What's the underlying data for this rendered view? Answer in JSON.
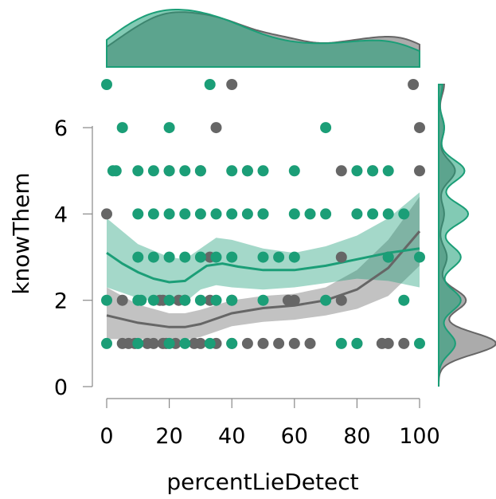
{
  "chart_data": {
    "type": "scatter",
    "title": "",
    "xlabel": "percentLieDetect",
    "ylabel": "knowThem",
    "xlim": [
      0,
      100
    ],
    "ylim": [
      0,
      7
    ],
    "x_ticks": [
      "0",
      "20",
      "40",
      "60",
      "80",
      "100"
    ],
    "y_ticks": [
      "0",
      "2",
      "4",
      "6"
    ],
    "grid": false,
    "legend": "none",
    "marginal_density": {
      "x": "top",
      "y": "right"
    },
    "colors": {
      "green": "#1b9e77",
      "gray": "#666666"
    },
    "series": [
      {
        "color": "#1b9e77",
        "points": [
          [
            0,
            7
          ],
          [
            33,
            7
          ],
          [
            5,
            6
          ],
          [
            20,
            6
          ],
          [
            70,
            6
          ],
          [
            2,
            5
          ],
          [
            3,
            5
          ],
          [
            10,
            5
          ],
          [
            15,
            5
          ],
          [
            20,
            5
          ],
          [
            25,
            5
          ],
          [
            30,
            5
          ],
          [
            40,
            5
          ],
          [
            45,
            5
          ],
          [
            50,
            5
          ],
          [
            60,
            5
          ],
          [
            80,
            5
          ],
          [
            85,
            5
          ],
          [
            90,
            5
          ],
          [
            10,
            4
          ],
          [
            15,
            4
          ],
          [
            20,
            4
          ],
          [
            25,
            4
          ],
          [
            30,
            4
          ],
          [
            35,
            4
          ],
          [
            40,
            4
          ],
          [
            45,
            4
          ],
          [
            50,
            4
          ],
          [
            60,
            4
          ],
          [
            65,
            4
          ],
          [
            70,
            4
          ],
          [
            80,
            4
          ],
          [
            85,
            4
          ],
          [
            90,
            4
          ],
          [
            95,
            4
          ],
          [
            10,
            3
          ],
          [
            15,
            3
          ],
          [
            20,
            3
          ],
          [
            25,
            3
          ],
          [
            30,
            3
          ],
          [
            35,
            3
          ],
          [
            40,
            3
          ],
          [
            50,
            3
          ],
          [
            55,
            3
          ],
          [
            60,
            3
          ],
          [
            90,
            3
          ],
          [
            100,
            3
          ],
          [
            0,
            2
          ],
          [
            10,
            2
          ],
          [
            11,
            2
          ],
          [
            15,
            2
          ],
          [
            20,
            2
          ],
          [
            25,
            2
          ],
          [
            30,
            2
          ],
          [
            35,
            2
          ],
          [
            40,
            2
          ],
          [
            50,
            2
          ],
          [
            70,
            2
          ],
          [
            95,
            2
          ],
          [
            0,
            1
          ],
          [
            10,
            1
          ],
          [
            20,
            1
          ],
          [
            25,
            1
          ],
          [
            33,
            1
          ],
          [
            40,
            1
          ],
          [
            75,
            1
          ],
          [
            80,
            1
          ],
          [
            100,
            1
          ]
        ],
        "smooth_line": [
          [
            0,
            3.1
          ],
          [
            5,
            2.85
          ],
          [
            10,
            2.65
          ],
          [
            15,
            2.5
          ],
          [
            20,
            2.42
          ],
          [
            25,
            2.45
          ],
          [
            28,
            2.6
          ],
          [
            32,
            2.8
          ],
          [
            37,
            2.85
          ],
          [
            42,
            2.78
          ],
          [
            50,
            2.7
          ],
          [
            60,
            2.7
          ],
          [
            70,
            2.8
          ],
          [
            80,
            2.95
          ],
          [
            90,
            3.1
          ],
          [
            100,
            3.2
          ]
        ],
        "band_upper": [
          [
            0,
            3.9
          ],
          [
            10,
            3.3
          ],
          [
            20,
            3.0
          ],
          [
            25,
            2.95
          ],
          [
            30,
            3.2
          ],
          [
            35,
            3.45
          ],
          [
            40,
            3.4
          ],
          [
            50,
            3.2
          ],
          [
            60,
            3.1
          ],
          [
            70,
            3.25
          ],
          [
            80,
            3.5
          ],
          [
            90,
            3.9
          ],
          [
            100,
            4.5
          ]
        ],
        "band_lower": [
          [
            0,
            2.3
          ],
          [
            10,
            2.05
          ],
          [
            20,
            1.9
          ],
          [
            25,
            1.95
          ],
          [
            30,
            2.25
          ],
          [
            35,
            2.35
          ],
          [
            40,
            2.3
          ],
          [
            50,
            2.25
          ],
          [
            60,
            2.3
          ],
          [
            70,
            2.4
          ],
          [
            80,
            2.5
          ],
          [
            90,
            2.45
          ],
          [
            100,
            2.3
          ]
        ]
      },
      {
        "color": "#666666",
        "points": [
          [
            40,
            7
          ],
          [
            98,
            7
          ],
          [
            35,
            6
          ],
          [
            100,
            6
          ],
          [
            20,
            5
          ],
          [
            30,
            5
          ],
          [
            45,
            5
          ],
          [
            75,
            5
          ],
          [
            85,
            5
          ],
          [
            100,
            5
          ],
          [
            0,
            4
          ],
          [
            50,
            4
          ],
          [
            33,
            3
          ],
          [
            75,
            3
          ],
          [
            90,
            3
          ],
          [
            5,
            2
          ],
          [
            17,
            2
          ],
          [
            18,
            2
          ],
          [
            23,
            2
          ],
          [
            25,
            2
          ],
          [
            33,
            2
          ],
          [
            40,
            2
          ],
          [
            58,
            2
          ],
          [
            60,
            2
          ],
          [
            75,
            2
          ],
          [
            5,
            1
          ],
          [
            7,
            1
          ],
          [
            9,
            1
          ],
          [
            13,
            1
          ],
          [
            15,
            1
          ],
          [
            18,
            1
          ],
          [
            19,
            1
          ],
          [
            22,
            1
          ],
          [
            28,
            1
          ],
          [
            30,
            1
          ],
          [
            35,
            1
          ],
          [
            40,
            1
          ],
          [
            45,
            1
          ],
          [
            50,
            1
          ],
          [
            55,
            1
          ],
          [
            60,
            1
          ],
          [
            65,
            1
          ],
          [
            80,
            1
          ],
          [
            88,
            1
          ],
          [
            90,
            1
          ],
          [
            95,
            1
          ]
        ],
        "smooth_line": [
          [
            0,
            1.65
          ],
          [
            10,
            1.48
          ],
          [
            20,
            1.38
          ],
          [
            25,
            1.38
          ],
          [
            30,
            1.45
          ],
          [
            40,
            1.7
          ],
          [
            50,
            1.82
          ],
          [
            60,
            1.88
          ],
          [
            70,
            2.0
          ],
          [
            80,
            2.25
          ],
          [
            90,
            2.75
          ],
          [
            100,
            3.6
          ]
        ],
        "band_upper": [
          [
            0,
            2.3
          ],
          [
            10,
            1.9
          ],
          [
            20,
            1.7
          ],
          [
            25,
            1.7
          ],
          [
            30,
            1.78
          ],
          [
            40,
            2.0
          ],
          [
            50,
            2.1
          ],
          [
            60,
            2.15
          ],
          [
            70,
            2.3
          ],
          [
            80,
            2.7
          ],
          [
            90,
            3.4
          ],
          [
            100,
            4.4
          ]
        ],
        "band_lower": [
          [
            0,
            1.1
          ],
          [
            10,
            1.1
          ],
          [
            20,
            1.08
          ],
          [
            25,
            1.08
          ],
          [
            30,
            1.15
          ],
          [
            40,
            1.4
          ],
          [
            50,
            1.5
          ],
          [
            60,
            1.55
          ],
          [
            70,
            1.65
          ],
          [
            80,
            1.8
          ],
          [
            90,
            2.1
          ],
          [
            100,
            2.8
          ]
        ]
      }
    ]
  }
}
